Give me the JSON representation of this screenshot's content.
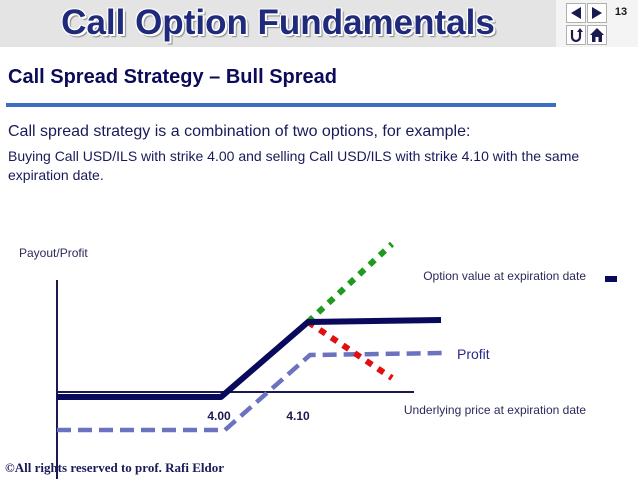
{
  "header": {
    "title": "Call Option Fundamentals",
    "slide_number": "13",
    "nav_icons": [
      "arrow-left-icon",
      "arrow-right-icon",
      "return-icon",
      "home-icon"
    ]
  },
  "section": {
    "subtitle": "Call Spread Strategy – Bull Spread",
    "intro": "Call spread strategy is a combination of two options, for example:",
    "description": "Buying Call USD/ILS with strike 4.00 and selling Call USD/ILS with strike 4.10 with the same expiration date."
  },
  "diagram": {
    "y_axis_label": "Payout/Profit",
    "x_axis_label": "Underlying price at expiration date",
    "legend_option_value": "Option value at expiration date",
    "legend_profit": "Profit",
    "strike_low": "4.00",
    "strike_high": "4.10",
    "colors": {
      "option_value": "#0a0a5c",
      "profit": "#6b72bf",
      "long_call_extension": "#1e9a1e",
      "short_call": "#e01010",
      "axis": "#1a1a4e",
      "accent_rule": "#3b6fc2"
    }
  },
  "footer": {
    "copyright": "©All rights reserved to prof. Rafi Eldor"
  }
}
